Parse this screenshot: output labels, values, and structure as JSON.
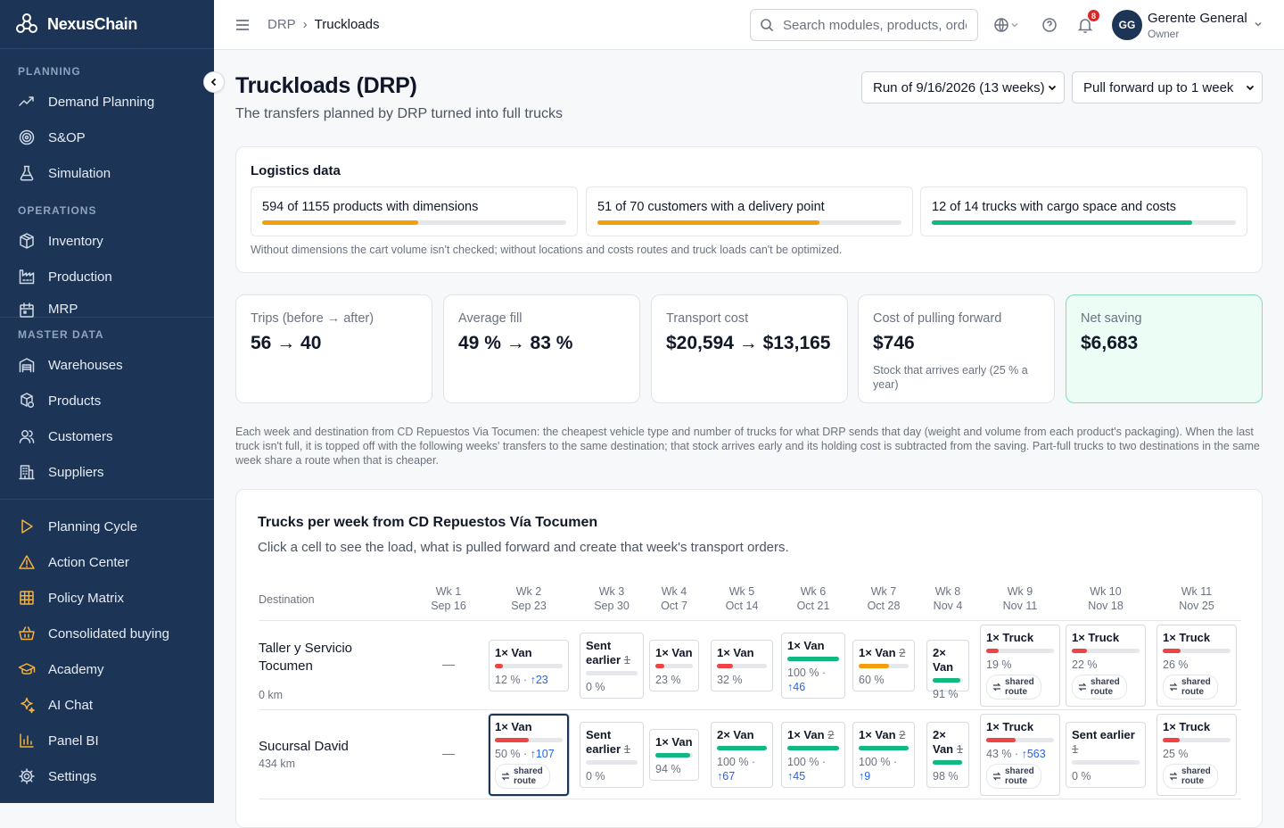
{
  "app": {
    "name": "NexusChain"
  },
  "sidebar": {
    "sections": {
      "planning": "PLANNING",
      "operations": "OPERATIONS",
      "master": "MASTER DATA"
    },
    "items": [
      {
        "label": "Demand Planning",
        "icon": "trend-icon"
      },
      {
        "label": "S&OP",
        "icon": "target-icon"
      },
      {
        "label": "Simulation",
        "icon": "flask-icon"
      },
      {
        "label": "Inventory",
        "icon": "box-icon"
      },
      {
        "label": "Production",
        "icon": "factory-icon"
      },
      {
        "label": "MRP",
        "icon": "mrp-icon"
      },
      {
        "label": "Warehouses",
        "icon": "warehouse-icon"
      },
      {
        "label": "Products",
        "icon": "products-icon"
      },
      {
        "label": "Customers",
        "icon": "users-icon"
      },
      {
        "label": "Suppliers",
        "icon": "building-icon"
      },
      {
        "label": "Planning Cycle",
        "icon": "play-icon"
      },
      {
        "label": "Action Center",
        "icon": "alert-icon"
      },
      {
        "label": "Policy Matrix",
        "icon": "grid-icon"
      },
      {
        "label": "Consolidated buying",
        "icon": "basket-icon"
      },
      {
        "label": "Academy",
        "icon": "graduation-icon"
      },
      {
        "label": "AI Chat",
        "icon": "sparkle-icon"
      },
      {
        "label": "Panel BI",
        "icon": "chart-icon"
      },
      {
        "label": "Settings",
        "icon": "gear-icon"
      }
    ]
  },
  "topbar": {
    "breadcrumb": [
      "DRP",
      "Truckloads"
    ],
    "search_placeholder": "Search modules, products, orders…",
    "notifications": "8",
    "user": {
      "initials": "GG",
      "name": "Gerente General",
      "role": "Owner"
    }
  },
  "page": {
    "title": "Truckloads (DRP)",
    "subtitle": "The transfers planned by DRP turned into full trucks",
    "run_select": "Run of 9/16/2026 (13 weeks)",
    "pull_select": "Pull forward up to 1 week"
  },
  "logistics": {
    "title": "Logistics data",
    "items": [
      {
        "text": "594 of 1155 products with dimensions",
        "fill": 0.514,
        "color": "#f59e0b"
      },
      {
        "text": "51 of 70 customers with a delivery point",
        "fill": 0.729,
        "color": "#f59e0b"
      },
      {
        "text": "12 of 14 trucks with cargo space and costs",
        "fill": 0.857,
        "color": "#10b981"
      }
    ],
    "note": "Without dimensions the cart volume isn't checked; without locations and costs routes and truck loads can't be optimized."
  },
  "kpis": [
    {
      "label": "Trips (before → after)",
      "value": "56 → 40",
      "note": ""
    },
    {
      "label": "Average fill",
      "value": "49 % → 83 %",
      "note": ""
    },
    {
      "label": "Transport cost",
      "value": "$20,594 → $13,165",
      "note": ""
    },
    {
      "label": "Cost of pulling forward",
      "value": "$746",
      "note": "Stock that arrives early (25 % a year)"
    },
    {
      "label": "Net saving",
      "value": "$6,683",
      "note": ""
    }
  ],
  "description": "Each week and destination from CD Repuestos Via Tocumen: the cheapest vehicle type and number of trucks for what DRP sends that day (weight and volume from each product's packaging). When the last truck isn't full, it is topped off with the following weeks' transfers to the same destination; that stock arrives early and its holding cost is subtracted from the saving. Part-full trucks to two destinations in the same week share a route when that is cheaper.",
  "grid": {
    "title": "Trucks per week from CD Repuestos Vía Tocumen",
    "subtitle": "Click a cell to see the load, what is pulled forward and create that week's transport orders.",
    "dest_header": "Destination",
    "weeks": [
      {
        "wk": "Wk 1",
        "date": "Sep 16"
      },
      {
        "wk": "Wk 2",
        "date": "Sep 23"
      },
      {
        "wk": "Wk 3",
        "date": "Sep 30"
      },
      {
        "wk": "Wk 4",
        "date": "Oct 7"
      },
      {
        "wk": "Wk 5",
        "date": "Oct 14"
      },
      {
        "wk": "Wk 6",
        "date": "Oct 21"
      },
      {
        "wk": "Wk 7",
        "date": "Oct 28"
      },
      {
        "wk": "Wk 8",
        "date": "Nov 4"
      },
      {
        "wk": "Wk 9",
        "date": "Nov 11"
      },
      {
        "wk": "Wk 10",
        "date": "Nov 18"
      },
      {
        "wk": "Wk 11",
        "date": "Nov 25"
      }
    ],
    "shared_label": "shared route",
    "rows": [
      {
        "name": "Taller y Servicio Tocumen",
        "km": "0 km",
        "empty": "—",
        "cells": [
          null,
          {
            "title": "1× Van",
            "strike": "",
            "fill": 0.12,
            "color": "#ef4444",
            "pct": "12 %",
            "up": "↑23",
            "shared": false
          },
          {
            "title": "Sent earlier",
            "strike": "1",
            "fill": 0,
            "color": "#e5e7eb",
            "pct": "0 %",
            "up": "",
            "shared": false
          },
          {
            "title": "1× Van",
            "strike": "",
            "fill": 0.23,
            "color": "#ef4444",
            "pct": "23 %",
            "up": "",
            "shared": false
          },
          {
            "title": "1× Van",
            "strike": "",
            "fill": 0.32,
            "color": "#ef4444",
            "pct": "32 %",
            "up": "",
            "shared": false
          },
          {
            "title": "1× Van",
            "strike": "",
            "fill": 1.0,
            "color": "#10b981",
            "pct": "100 %",
            "up": "↑46",
            "shared": false
          },
          {
            "title": "1× Van",
            "strike": "2",
            "fill": 0.6,
            "color": "#f59e0b",
            "pct": "60 %",
            "up": "",
            "shared": false
          },
          {
            "title": "2× Van",
            "strike": "",
            "fill": 0.91,
            "color": "#10b981",
            "pct": "91 %",
            "up": "",
            "shared": false
          },
          {
            "title": "1× Truck",
            "strike": "",
            "fill": 0.19,
            "color": "#ef4444",
            "pct": "19 %",
            "up": "",
            "shared": true
          },
          {
            "title": "1× Truck",
            "strike": "",
            "fill": 0.22,
            "color": "#ef4444",
            "pct": "22 %",
            "up": "",
            "shared": true
          },
          {
            "title": "1× Truck",
            "strike": "",
            "fill": 0.26,
            "color": "#ef4444",
            "pct": "26 %",
            "up": "",
            "shared": true
          }
        ]
      },
      {
        "name": "Sucursal David",
        "km": "434 km",
        "empty": "—",
        "cells": [
          null,
          {
            "title": "1× Van",
            "strike": "",
            "fill": 0.5,
            "color": "#ef4444",
            "pct": "50 %",
            "up": "↑107",
            "shared": true,
            "selected": true
          },
          {
            "title": "Sent earlier",
            "strike": "1",
            "fill": 0,
            "color": "#e5e7eb",
            "pct": "0 %",
            "up": "",
            "shared": false
          },
          {
            "title": "1× Van",
            "strike": "",
            "fill": 0.94,
            "color": "#10b981",
            "pct": "94 %",
            "up": "",
            "shared": false
          },
          {
            "title": "2× Van",
            "strike": "",
            "fill": 1.0,
            "color": "#10b981",
            "pct": "100 %",
            "up": "↑67",
            "shared": false
          },
          {
            "title": "1× Van",
            "strike": "2",
            "fill": 1.0,
            "color": "#10b981",
            "pct": "100 %",
            "up": "↑45",
            "shared": false
          },
          {
            "title": "1× Van",
            "strike": "2",
            "fill": 1.0,
            "color": "#10b981",
            "pct": "100 %",
            "up": "↑9",
            "shared": false
          },
          {
            "title": "2× Van",
            "strike": "1",
            "fill": 0.98,
            "color": "#10b981",
            "pct": "98 %",
            "up": "",
            "shared": false
          },
          {
            "title": "1× Truck",
            "strike": "",
            "fill": 0.43,
            "color": "#ef4444",
            "pct": "43 %",
            "up": "↑563",
            "shared": true
          },
          {
            "title": "Sent earlier",
            "strike": "1",
            "fill": 0,
            "color": "#e5e7eb",
            "pct": "0 %",
            "up": "",
            "shared": false
          },
          {
            "title": "1× Truck",
            "strike": "",
            "fill": 0.25,
            "color": "#ef4444",
            "pct": "25 %",
            "up": "",
            "shared": true
          }
        ]
      }
    ]
  }
}
